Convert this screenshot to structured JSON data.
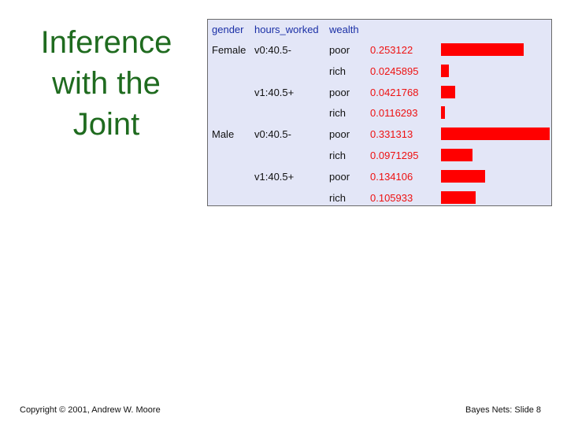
{
  "slide": {
    "title_lines": [
      "Inference",
      "with the",
      "Joint"
    ],
    "footer_left": "Copyright © 2001, Andrew W. Moore",
    "footer_right": "Bayes Nets: Slide 8"
  },
  "table": {
    "headers": [
      "gender",
      "hours_worked",
      "wealth"
    ],
    "rows": [
      {
        "gender": "Female",
        "hours": "v0:40.5-",
        "wealth": "poor",
        "p": "0.253122",
        "value": 0.253122
      },
      {
        "gender": "",
        "hours": "",
        "wealth": "rich",
        "p": "0.0245895",
        "value": 0.0245895
      },
      {
        "gender": "",
        "hours": "v1:40.5+",
        "wealth": "poor",
        "p": "0.0421768",
        "value": 0.0421768
      },
      {
        "gender": "",
        "hours": "",
        "wealth": "rich",
        "p": "0.0116293",
        "value": 0.0116293
      },
      {
        "gender": "Male",
        "hours": "v0:40.5-",
        "wealth": "poor",
        "p": "0.331313",
        "value": 0.331313
      },
      {
        "gender": "",
        "hours": "",
        "wealth": "rich",
        "p": "0.0971295",
        "value": 0.0971295
      },
      {
        "gender": "",
        "hours": "v1:40.5+",
        "wealth": "poor",
        "p": "0.134106",
        "value": 0.134106
      },
      {
        "gender": "",
        "hours": "",
        "wealth": "rich",
        "p": "0.105933",
        "value": 0.105933
      }
    ],
    "bar_color": "#ff0000",
    "header_color": "#1a2fa6",
    "prob_color": "#ee1111"
  }
}
